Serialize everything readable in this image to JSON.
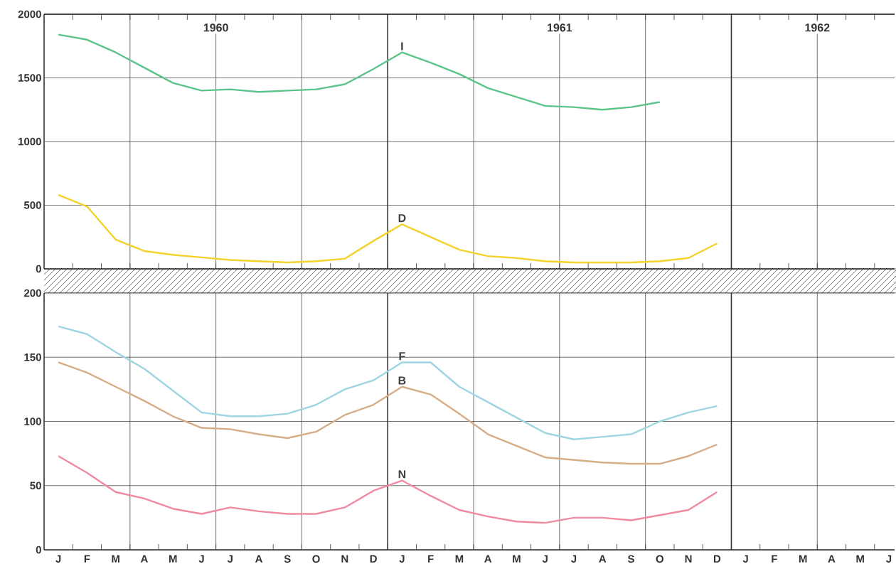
{
  "chart_data": [
    {
      "type": "line",
      "marker": "none",
      "grid": true,
      "tick_labels": "y",
      "categories": [
        null,
        null,
        null,
        null,
        null,
        null,
        null,
        null,
        null,
        null,
        null,
        null,
        null,
        null,
        null,
        null,
        null,
        null,
        null,
        null,
        null,
        null,
        null,
        null,
        null,
        null,
        null,
        null,
        null,
        null
      ],
      "ylim": [
        0,
        2000
      ],
      "yticks": [
        0,
        500,
        1000,
        1500,
        2000
      ],
      "annotations": [
        "1960",
        "1961",
        "1962"
      ],
      "series": [
        {
          "name": "I",
          "color": "#5cc48a",
          "values": [
            1840,
            1800,
            1700,
            1580,
            1460,
            1400,
            1410,
            1390,
            1400,
            1410,
            1450,
            1570,
            1700,
            1620,
            1530,
            1420,
            1350,
            1280,
            1270,
            1250,
            1270,
            1310,
            null,
            null,
            null,
            null,
            null,
            null,
            null,
            null
          ]
        },
        {
          "name": "D",
          "color": "#f2d22c",
          "values": [
            580,
            490,
            230,
            140,
            110,
            90,
            70,
            60,
            50,
            60,
            80,
            220,
            350,
            250,
            150,
            100,
            85,
            60,
            50,
            50,
            50,
            60,
            85,
            200,
            null,
            null,
            null,
            null,
            null,
            null
          ]
        }
      ]
    },
    {
      "type": "line",
      "marker": "none",
      "grid": true,
      "categories": [
        "J",
        "F",
        "M",
        "A",
        "M",
        "J",
        "J",
        "A",
        "S",
        "O",
        "N",
        "D",
        "J",
        "F",
        "M",
        "A",
        "M",
        "J",
        "J",
        "A",
        "S",
        "O",
        "N",
        "D",
        "J",
        "F",
        "M",
        "A",
        "M",
        "J"
      ],
      "ylim": [
        0,
        200
      ],
      "yticks": [
        0,
        50,
        100,
        150,
        200
      ],
      "series": [
        {
          "name": "F",
          "color": "#9fd5e2",
          "values": [
            174,
            168,
            154,
            141,
            124,
            107,
            104,
            104,
            106,
            113,
            125,
            132,
            146,
            146,
            127,
            115,
            103,
            91,
            86,
            88,
            90,
            100,
            107,
            112,
            null,
            null,
            null,
            null,
            null,
            null
          ]
        },
        {
          "name": "B",
          "color": "#d6ad86",
          "values": [
            146,
            138,
            127,
            116,
            104,
            95,
            94,
            90,
            87,
            92,
            105,
            113,
            127,
            121,
            106,
            90,
            81,
            72,
            70,
            68,
            67,
            67,
            73,
            82,
            null,
            null,
            null,
            null,
            null,
            null
          ]
        },
        {
          "name": "N",
          "color": "#f08aa0",
          "values": [
            73,
            60,
            45,
            40,
            32,
            28,
            33,
            30,
            28,
            28,
            33,
            46,
            54,
            42,
            31,
            26,
            22,
            21,
            25,
            25,
            23,
            27,
            31,
            45,
            null,
            null,
            null,
            null,
            null,
            null
          ]
        }
      ]
    }
  ]
}
